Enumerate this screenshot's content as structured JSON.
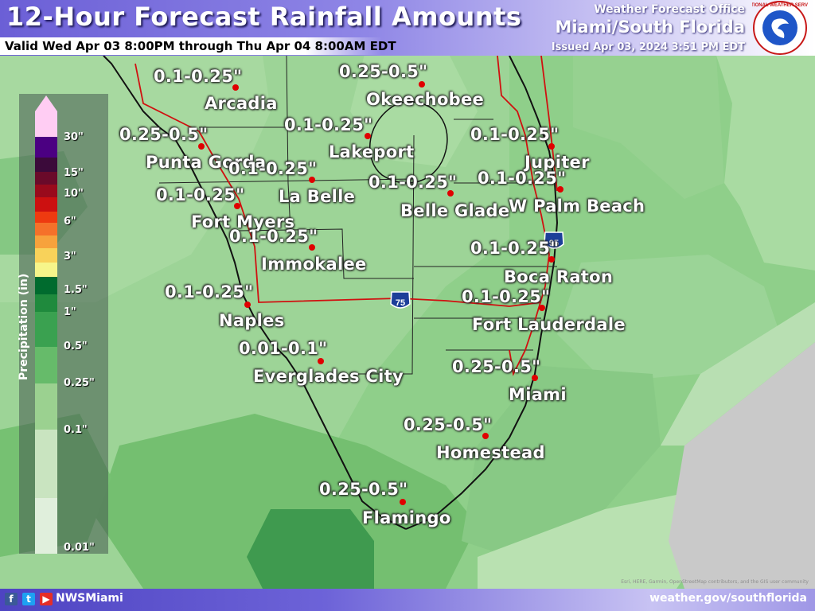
{
  "header": {
    "title": "12-Hour Forecast Rainfall Amounts",
    "valid": "Valid Wed Apr 03 8:00PM through Thu Apr 04 8:00AM EDT",
    "office_line1": "Weather Forecast Office",
    "office_line2": "Miami/South Florida",
    "issued": "Issued Apr 03, 2024 3:51 PM EDT",
    "seal_text": "NATIONAL WEATHER SERVICE"
  },
  "legend": {
    "title": "Precipitation (in)",
    "ticks": [
      "30\"",
      "15\"",
      "10\"",
      "6\"",
      "3\"",
      "1.5\"",
      "1\"",
      "0.5\"",
      "0.25\"",
      "0.1\"",
      "0.01\""
    ],
    "colors": [
      "#ffcdf3",
      "#4b0082",
      "#3b0a3a",
      "#6a0a2a",
      "#990a1c",
      "#cc1010",
      "#ee3a10",
      "#f5712a",
      "#f7a23c",
      "#f8d25a",
      "#f6f58a",
      "#006b2e",
      "#1f8a3d",
      "#3aa150",
      "#66bb6a",
      "#9bd190",
      "#c9e4c0",
      "#e0efdc"
    ]
  },
  "locations": [
    {
      "city": "Arcadia",
      "amount": "0.1-0.25\""
    },
    {
      "city": "Okeechobee",
      "amount": "0.25-0.5\""
    },
    {
      "city": "Punta Gorda",
      "amount": "0.25-0.5\""
    },
    {
      "city": "Lakeport",
      "amount": "0.1-0.25\""
    },
    {
      "city": "Jupiter",
      "amount": "0.1-0.25\""
    },
    {
      "city": "La Belle",
      "amount": "0.1-0.25\""
    },
    {
      "city": "Fort Myers",
      "amount": "0.1-0.25\""
    },
    {
      "city": "Belle Glade",
      "amount": "0.1-0.25\""
    },
    {
      "city": "W Palm Beach",
      "amount": "0.1-0.25\""
    },
    {
      "city": "Immokalee",
      "amount": "0.1-0.25\""
    },
    {
      "city": "Boca Raton",
      "amount": "0.1-0.25\""
    },
    {
      "city": "Naples",
      "amount": "0.1-0.25\""
    },
    {
      "city": "Fort Lauderdale",
      "amount": "0.1-0.25\""
    },
    {
      "city": "Everglades City",
      "amount": "0.01-0.1\""
    },
    {
      "city": "Miami",
      "amount": "0.25-0.5\""
    },
    {
      "city": "Homestead",
      "amount": "0.25-0.5\""
    },
    {
      "city": "Flamingo",
      "amount": "0.25-0.5\""
    }
  ],
  "highways": [
    {
      "name": "I-75",
      "shield": "75"
    },
    {
      "name": "I-95",
      "shield": "95"
    }
  ],
  "footer": {
    "icons": [
      "facebook-icon",
      "twitter-icon",
      "youtube-icon"
    ],
    "handle": "NWSMiami",
    "site": "weather.gov/southflorida",
    "attribution": "Esri, HERE, Garmin, OpenStreetMap contributors, and the GIS user community"
  }
}
